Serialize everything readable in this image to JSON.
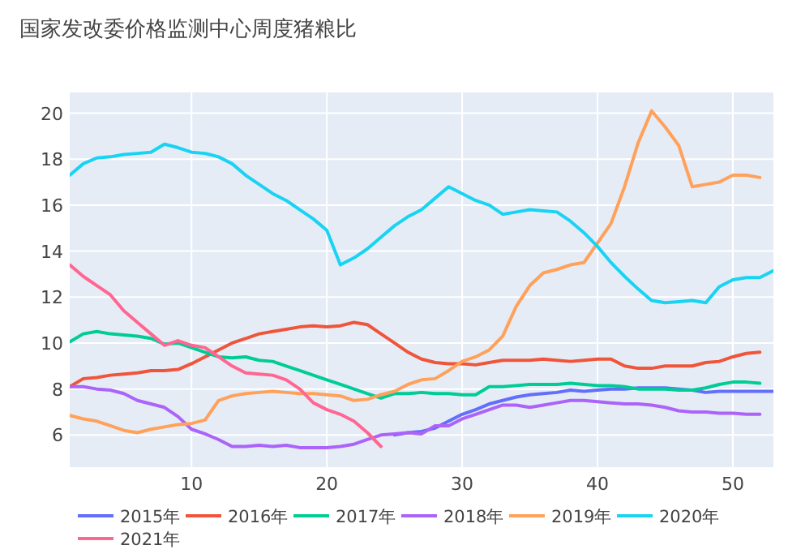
{
  "chart_data": {
    "type": "line",
    "title": "国家发改委价格监测中心周度猪粮比",
    "x": [
      1,
      2,
      3,
      4,
      5,
      6,
      7,
      8,
      9,
      10,
      11,
      12,
      13,
      14,
      15,
      16,
      17,
      18,
      19,
      20,
      21,
      22,
      23,
      24,
      25,
      26,
      27,
      28,
      29,
      30,
      31,
      32,
      33,
      34,
      35,
      36,
      37,
      38,
      39,
      40,
      41,
      42,
      43,
      44,
      45,
      46,
      47,
      48,
      49,
      50,
      51,
      52,
      53
    ],
    "xlim": [
      1,
      53
    ],
    "xticks": [
      10,
      20,
      30,
      40,
      50
    ],
    "ylim": [
      4.6,
      20.9
    ],
    "yticks": [
      6,
      8,
      10,
      12,
      14,
      16,
      18,
      20
    ],
    "grid": true,
    "legend": "bottom",
    "marker": "none",
    "line_style": "solid",
    "series": [
      {
        "name": "2015年",
        "color": "#636efa",
        "values": [
          null,
          null,
          null,
          null,
          null,
          null,
          null,
          null,
          null,
          null,
          null,
          null,
          null,
          null,
          null,
          null,
          null,
          null,
          null,
          null,
          null,
          null,
          null,
          null,
          6.0,
          6.1,
          6.15,
          6.3,
          6.6,
          6.9,
          7.1,
          7.35,
          7.5,
          7.65,
          7.75,
          7.8,
          7.85,
          7.95,
          7.9,
          7.95,
          8.0,
          8.0,
          8.05,
          8.05,
          8.05,
          8.0,
          7.95,
          7.85,
          7.9,
          7.9,
          7.9,
          7.9,
          7.9
        ]
      },
      {
        "name": "2016年",
        "color": "#ef553b",
        "values": [
          8.1,
          8.45,
          8.5,
          8.6,
          8.65,
          8.7,
          8.8,
          8.8,
          8.85,
          9.1,
          9.4,
          9.7,
          10.0,
          10.2,
          10.4,
          10.5,
          10.6,
          10.7,
          10.75,
          10.7,
          10.75,
          10.9,
          10.8,
          10.4,
          10.0,
          9.6,
          9.3,
          9.15,
          9.1,
          9.1,
          9.05,
          9.15,
          9.25,
          9.25,
          9.25,
          9.3,
          9.25,
          9.2,
          9.25,
          9.3,
          9.3,
          9.0,
          8.9,
          8.9,
          9.0,
          9.0,
          9.0,
          9.15,
          9.2,
          9.4,
          9.55,
          9.6,
          null
        ]
      },
      {
        "name": "2017年",
        "color": "#00cc96",
        "values": [
          10.05,
          10.4,
          10.5,
          10.4,
          10.35,
          10.3,
          10.2,
          9.95,
          10.0,
          9.8,
          9.6,
          9.4,
          9.35,
          9.4,
          9.25,
          9.2,
          9.0,
          8.8,
          8.6,
          8.4,
          8.2,
          8.0,
          7.8,
          7.6,
          7.8,
          7.8,
          7.85,
          7.8,
          7.8,
          7.75,
          7.75,
          8.1,
          8.1,
          8.15,
          8.2,
          8.2,
          8.2,
          8.25,
          8.2,
          8.15,
          8.15,
          8.1,
          8.0,
          8.0,
          8.0,
          7.95,
          7.95,
          8.05,
          8.2,
          8.3,
          8.3,
          8.25,
          null
        ]
      },
      {
        "name": "2018年",
        "color": "#ab63fa",
        "values": [
          8.1,
          8.1,
          8.0,
          7.95,
          7.8,
          7.5,
          7.35,
          7.2,
          6.8,
          6.25,
          6.05,
          5.8,
          5.5,
          5.5,
          5.55,
          5.5,
          5.55,
          5.45,
          5.45,
          5.45,
          5.5,
          5.6,
          5.8,
          6.0,
          6.05,
          6.1,
          6.05,
          6.4,
          6.4,
          6.7,
          6.9,
          7.1,
          7.3,
          7.3,
          7.2,
          7.3,
          7.4,
          7.5,
          7.5,
          7.45,
          7.4,
          7.35,
          7.35,
          7.3,
          7.2,
          7.05,
          7.0,
          7.0,
          6.95,
          6.95,
          6.9,
          6.9,
          null
        ]
      },
      {
        "name": "2019年",
        "color": "#ffa15a",
        "values": [
          6.85,
          6.7,
          6.6,
          6.4,
          6.2,
          6.1,
          6.25,
          6.35,
          6.45,
          6.5,
          6.65,
          7.5,
          7.7,
          7.8,
          7.85,
          7.9,
          7.85,
          7.8,
          7.8,
          7.75,
          7.7,
          7.5,
          7.55,
          7.75,
          7.9,
          8.2,
          8.4,
          8.45,
          8.8,
          9.2,
          9.4,
          9.7,
          10.3,
          11.6,
          12.5,
          13.05,
          13.2,
          13.4,
          13.5,
          14.35,
          15.2,
          16.8,
          18.7,
          20.1,
          19.4,
          18.6,
          16.8,
          16.9,
          17.0,
          17.3,
          17.3,
          17.2,
          null
        ]
      },
      {
        "name": "2020年",
        "color": "#19d3f3",
        "values": [
          17.3,
          17.8,
          18.05,
          18.1,
          18.2,
          18.25,
          18.3,
          18.65,
          18.5,
          18.3,
          18.25,
          18.1,
          17.8,
          17.3,
          16.9,
          16.5,
          16.2,
          15.8,
          15.4,
          14.9,
          13.4,
          13.7,
          14.1,
          14.6,
          15.1,
          15.5,
          15.8,
          16.3,
          16.8,
          16.5,
          16.2,
          16.0,
          15.6,
          15.7,
          15.8,
          15.75,
          15.7,
          15.3,
          14.8,
          14.2,
          13.5,
          12.9,
          12.35,
          11.85,
          11.75,
          11.8,
          11.85,
          11.75,
          12.45,
          12.75,
          12.85,
          12.85,
          13.15
        ]
      },
      {
        "name": "2021年",
        "color": "#ff6692",
        "values": [
          13.4,
          12.9,
          12.5,
          12.1,
          11.4,
          10.9,
          10.4,
          9.9,
          10.1,
          9.9,
          9.8,
          9.4,
          9.0,
          8.7,
          8.65,
          8.6,
          8.4,
          8.0,
          7.4,
          7.1,
          6.9,
          6.6,
          6.1,
          5.5,
          null,
          null,
          null,
          null,
          null,
          null,
          null,
          null,
          null,
          null,
          null,
          null,
          null,
          null,
          null,
          null,
          null,
          null,
          null,
          null,
          null,
          null,
          null,
          null,
          null,
          null,
          null,
          null,
          null
        ]
      }
    ]
  }
}
